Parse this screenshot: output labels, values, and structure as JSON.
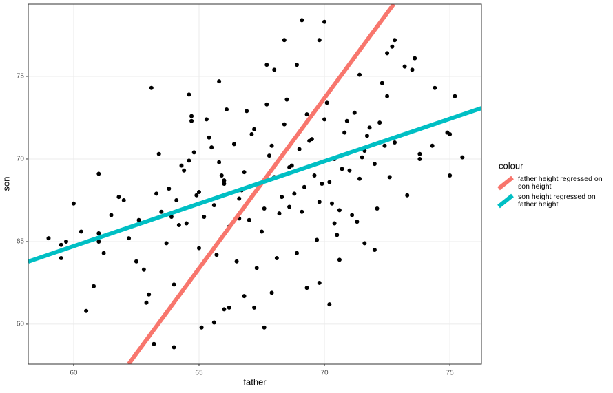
{
  "chart_data": {
    "type": "scatter",
    "x_label": "father",
    "y_label": "son",
    "legend_title": "colour",
    "xlim": [
      58.19,
      76.26
    ],
    "ylim": [
      57.58,
      79.375
    ],
    "xticks": [
      60,
      65,
      70,
      75
    ],
    "yticks": [
      60,
      65,
      70,
      75
    ],
    "grid": true,
    "point_color": "#000000",
    "points": {
      "x": [
        59.0,
        59.5,
        59.5,
        59.7,
        60.0,
        60.3,
        60.5,
        60.8,
        61.0,
        61.0,
        61.0,
        61.2,
        61.5,
        61.8,
        62.0,
        62.2,
        62.5,
        62.9,
        63.0,
        63.1,
        63.2,
        63.4,
        64.0,
        64.0,
        64.6,
        64.7,
        64.7,
        65.1,
        65.6,
        65.8,
        66.0,
        66.2,
        66.8,
        67.2,
        67.6,
        67.9,
        67.7,
        68.0,
        68.4,
        68.9,
        69.1,
        69.8,
        70.0,
        69.3,
        69.8,
        70.2,
        70.6,
        71.4,
        71.6,
        72.0,
        72.3,
        72.5,
        72.7,
        72.8,
        73.2,
        73.5,
        73.6,
        74.4,
        74.9,
        75.0,
        75.2,
        75.5,
        75.0,
        74.3,
        73.8,
        73.8,
        73.3,
        72.8,
        72.5,
        63.5,
        63.8,
        64.1,
        64.3,
        64.5,
        64.8,
        65.0,
        65.2,
        65.4,
        65.6,
        65.8,
        66.0,
        66.2,
        66.4,
        66.6,
        66.8,
        67.0,
        67.2,
        67.4,
        67.6,
        67.8,
        68.0,
        68.2,
        68.4,
        68.6,
        68.8,
        69.0,
        69.2,
        69.4,
        69.6,
        69.8,
        70.0,
        70.2,
        70.4,
        70.6,
        70.8,
        71.0,
        71.2,
        71.4,
        71.6,
        71.8,
        72.0,
        72.2,
        72.4,
        63.7,
        64.2,
        64.6,
        65.0,
        65.3,
        65.7,
        66.1,
        66.5,
        66.9,
        67.3,
        67.7,
        68.1,
        68.5,
        68.9,
        69.3,
        69.7,
        70.1,
        70.5,
        70.9,
        71.3,
        71.7,
        72.1,
        64.4,
        64.9,
        65.5,
        66.0,
        66.6,
        67.1,
        67.5,
        68.3,
        68.7,
        69.1,
        69.5,
        70.3,
        70.7,
        71.1,
        71.5,
        72.6,
        62.8,
        63.3,
        62.6,
        63.9,
        65.9,
        66.7,
        67.9,
        68.6,
        69.9,
        70.4
      ],
      "y": [
        65.2,
        64.8,
        64.0,
        65.0,
        67.3,
        65.6,
        60.8,
        62.3,
        69.1,
        65.5,
        65.0,
        64.3,
        66.6,
        67.7,
        67.5,
        65.2,
        63.8,
        61.3,
        61.8,
        74.3,
        58.8,
        70.3,
        62.4,
        58.6,
        73.9,
        72.6,
        72.3,
        59.8,
        60.1,
        74.7,
        60.9,
        61.0,
        61.7,
        61.0,
        59.8,
        61.9,
        75.7,
        75.4,
        77.2,
        75.7,
        78.4,
        77.2,
        78.3,
        62.2,
        62.5,
        61.2,
        63.9,
        75.1,
        64.9,
        64.5,
        74.6,
        76.4,
        76.8,
        77.2,
        75.6,
        75.4,
        76.1,
        74.3,
        71.6,
        69.0,
        73.8,
        70.1,
        71.5,
        70.8,
        70.3,
        70.0,
        67.8,
        71.0,
        73.8,
        66.8,
        68.2,
        67.5,
        69.6,
        66.1,
        70.4,
        68.0,
        66.5,
        71.3,
        67.2,
        69.8,
        68.7,
        65.9,
        70.9,
        67.6,
        69.2,
        66.3,
        71.8,
        68.4,
        67.0,
        70.2,
        68.9,
        66.7,
        72.1,
        69.5,
        67.9,
        70.6,
        68.3,
        71.1,
        69.0,
        67.4,
        72.4,
        68.6,
        70.0,
        66.9,
        71.6,
        69.3,
        72.8,
        68.8,
        70.5,
        71.9,
        69.7,
        72.2,
        70.8,
        64.9,
        66.0,
        69.9,
        64.6,
        72.4,
        64.2,
        73.0,
        63.8,
        72.9,
        63.4,
        73.3,
        64.0,
        73.6,
        64.3,
        72.7,
        65.1,
        73.4,
        65.4,
        72.3,
        66.2,
        71.4,
        67.0,
        69.3,
        67.8,
        70.7,
        68.5,
        66.4,
        71.5,
        65.6,
        67.7,
        69.6,
        66.8,
        71.2,
        67.3,
        69.4,
        66.6,
        70.1,
        68.9,
        63.3,
        67.9,
        66.3,
        66.5,
        69.0,
        68.1,
        70.8,
        67.1,
        68.5,
        66.1
      ]
    },
    "series": [
      {
        "name": "father height regressed on son height",
        "color": "#F8766D",
        "x": [
          62.19,
          72.76
        ],
        "values": [
          57.58,
          79.375
        ]
      },
      {
        "name": "son height regressed on father height",
        "color": "#00BFC4",
        "x": [
          58.19,
          76.26
        ],
        "values": [
          63.79,
          73.08
        ]
      }
    ]
  }
}
